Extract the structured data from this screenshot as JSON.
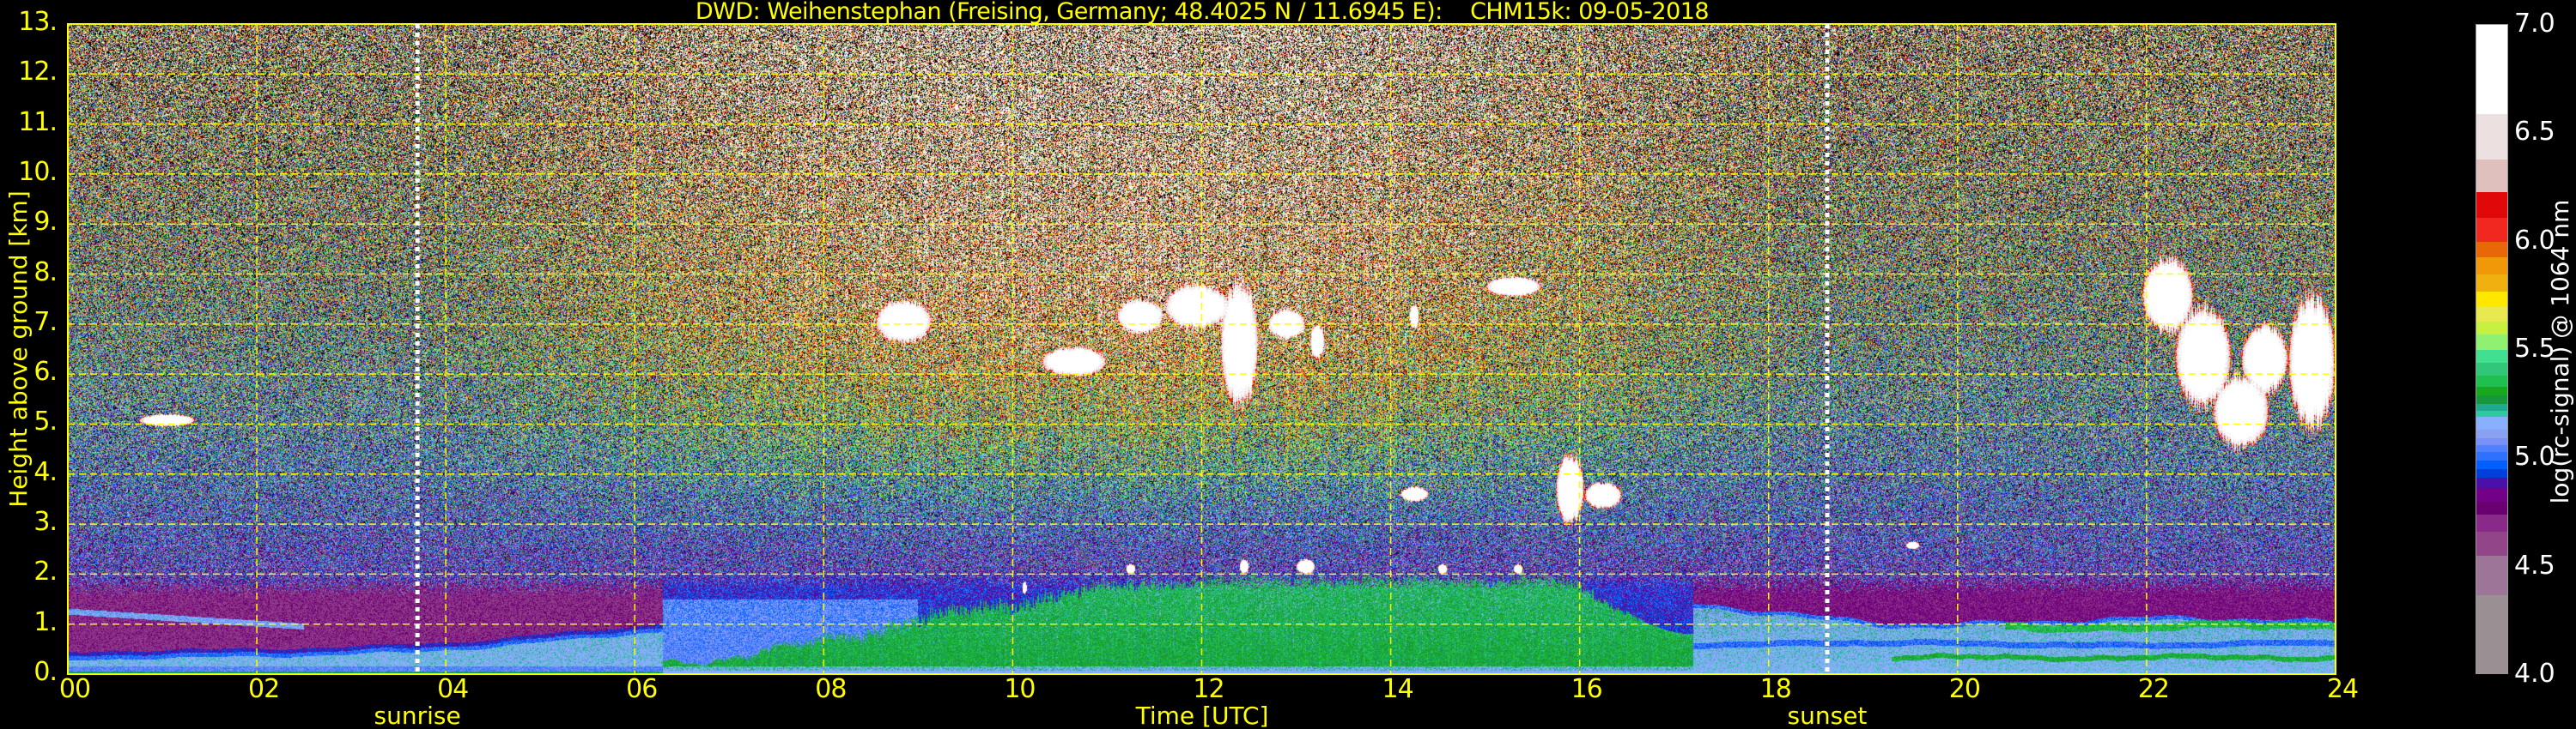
{
  "chart_data": {
    "type": "heatmap",
    "title": "DWD: Weihenstephan (Freising, Germany; 48.4025 N / 11.6945 E):    CHM15k: 09-05-2018",
    "xlabel": "Time [UTC]",
    "ylabel": "Height above ground [km]",
    "xlim": [
      0,
      24
    ],
    "ylim": [
      0,
      13
    ],
    "grid": true,
    "grid_color": "#ffff00",
    "axis_color": "#ffff00",
    "x_ticks": [
      {
        "value": 0,
        "label": "00"
      },
      {
        "value": 2,
        "label": "02"
      },
      {
        "value": 4,
        "label": "04"
      },
      {
        "value": 6,
        "label": "06"
      },
      {
        "value": 8,
        "label": "08"
      },
      {
        "value": 10,
        "label": "10"
      },
      {
        "value": 12,
        "label": "12"
      },
      {
        "value": 14,
        "label": "14"
      },
      {
        "value": 16,
        "label": "16"
      },
      {
        "value": 18,
        "label": "18"
      },
      {
        "value": 20,
        "label": "20"
      },
      {
        "value": 22,
        "label": "22"
      },
      {
        "value": 24,
        "label": "24"
      }
    ],
    "y_ticks": [
      {
        "value": 0,
        "label": "0."
      },
      {
        "value": 1,
        "label": "1."
      },
      {
        "value": 2,
        "label": "2."
      },
      {
        "value": 3,
        "label": "3."
      },
      {
        "value": 4,
        "label": "4."
      },
      {
        "value": 5,
        "label": "5."
      },
      {
        "value": 6,
        "label": "6."
      },
      {
        "value": 7,
        "label": "7."
      },
      {
        "value": 8,
        "label": "8."
      },
      {
        "value": 9,
        "label": "9."
      },
      {
        "value": 10,
        "label": "10."
      },
      {
        "value": 11,
        "label": "11."
      },
      {
        "value": 12,
        "label": "12."
      },
      {
        "value": 13,
        "label": "13."
      }
    ],
    "annotations": [
      {
        "label": "sunrise",
        "time": 3.7,
        "line_color": "#ffffff"
      },
      {
        "label": "sunset",
        "time": 18.62,
        "line_color": "#ffffff"
      }
    ],
    "colorbar": {
      "label": "log(rc-signal) @ 1064 nm",
      "range": [
        4.0,
        7.0
      ],
      "ticks": [
        {
          "value": 4.0,
          "label": "4.0"
        },
        {
          "value": 4.5,
          "label": "4.5"
        },
        {
          "value": 5.0,
          "label": "5.0"
        },
        {
          "value": 5.5,
          "label": "5.5"
        },
        {
          "value": 6.0,
          "label": "6.0"
        },
        {
          "value": 6.5,
          "label": "6.5"
        },
        {
          "value": 7.0,
          "label": "7.0"
        }
      ],
      "levels": [
        4.0,
        4.365,
        4.547,
        4.66,
        4.74,
        4.8,
        4.86,
        4.91,
        4.95,
        4.99,
        5.03,
        5.06,
        5.09,
        5.13,
        5.19,
        5.22,
        5.25,
        5.29,
        5.33,
        5.38,
        5.44,
        5.5,
        5.57,
        5.63,
        5.7,
        5.77,
        5.85,
        5.93,
        6.0,
        6.11,
        6.23,
        6.38,
        6.59,
        7.0
      ],
      "colors": [
        "#9a9094",
        "#9c7598",
        "#93458a",
        "#8a2a88",
        "#6a0070",
        "#720088",
        "#4a10a8",
        "#0040d8",
        "#0060ff",
        "#3070ff",
        "#5080ff",
        "#7890f8",
        "#8aa0f0",
        "#88b0ff",
        "#30c8a0",
        "#20a890",
        "#18963c",
        "#18a820",
        "#20c050",
        "#30c878",
        "#40e090",
        "#90f070",
        "#c8f040",
        "#e8e850",
        "#ffe800",
        "#f0b010",
        "#f09808",
        "#e86808",
        "#f02820",
        "#e00808",
        "#e0c0bc",
        "#ece0e0",
        "#ffffff"
      ]
    },
    "features": {
      "clouds": [
        {
          "time": [
            0.75,
            1.35
          ],
          "height_km": [
            4.95,
            5.2
          ]
        },
        {
          "time": [
            8.55,
            9.15
          ],
          "height_km": [
            6.6,
            7.5
          ]
        },
        {
          "time": [
            10.3,
            11.0
          ],
          "height_km": [
            5.95,
            6.55
          ]
        },
        {
          "time": [
            11.1,
            11.6
          ],
          "height_km": [
            6.8,
            7.5
          ]
        },
        {
          "time": [
            11.6,
            12.3
          ],
          "height_km": [
            6.9,
            7.8
          ]
        },
        {
          "time": [
            12.2,
            12.6
          ],
          "height_km": [
            5.3,
            7.9
          ]
        },
        {
          "time": [
            12.7,
            13.1
          ],
          "height_km": [
            6.7,
            7.3
          ]
        },
        {
          "time": [
            13.15,
            13.3
          ],
          "height_km": [
            6.3,
            7.0
          ]
        },
        {
          "time": [
            14.2,
            14.3
          ],
          "height_km": [
            6.9,
            7.4
          ]
        },
        {
          "time": [
            15.0,
            15.6
          ],
          "height_km": [
            7.55,
            7.95
          ]
        },
        {
          "time": [
            14.1,
            14.4
          ],
          "height_km": [
            3.45,
            3.75
          ]
        },
        {
          "time": [
            15.75,
            16.05
          ],
          "height_km": [
            3.0,
            4.4
          ]
        },
        {
          "time": [
            16.05,
            16.45
          ],
          "height_km": [
            3.3,
            3.85
          ]
        },
        {
          "time": [
            19.45,
            19.6
          ],
          "height_km": [
            2.5,
            2.65
          ]
        },
        {
          "time": [
            21.95,
            22.5
          ],
          "height_km": [
            6.8,
            8.35
          ]
        },
        {
          "time": [
            22.3,
            22.9
          ],
          "height_km": [
            5.3,
            7.4
          ]
        },
        {
          "time": [
            22.7,
            23.3
          ],
          "height_km": [
            4.5,
            6.0
          ]
        },
        {
          "time": [
            23.0,
            23.5
          ],
          "height_km": [
            5.6,
            7.0
          ]
        },
        {
          "time": [
            23.5,
            24.0
          ],
          "height_km": [
            4.9,
            7.6
          ]
        },
        {
          "time": [
            10.1,
            10.15
          ],
          "height_km": [
            1.6,
            1.85
          ]
        },
        {
          "time": [
            11.2,
            11.3
          ],
          "height_km": [
            2.0,
            2.2
          ]
        },
        {
          "time": [
            12.4,
            12.5
          ],
          "height_km": [
            2.0,
            2.3
          ]
        },
        {
          "time": [
            13.0,
            13.2
          ],
          "height_km": [
            2.0,
            2.3
          ]
        },
        {
          "time": [
            14.5,
            14.6
          ],
          "height_km": [
            2.0,
            2.2
          ]
        },
        {
          "time": [
            15.3,
            15.4
          ],
          "height_km": [
            2.0,
            2.2
          ]
        }
      ]
    }
  }
}
